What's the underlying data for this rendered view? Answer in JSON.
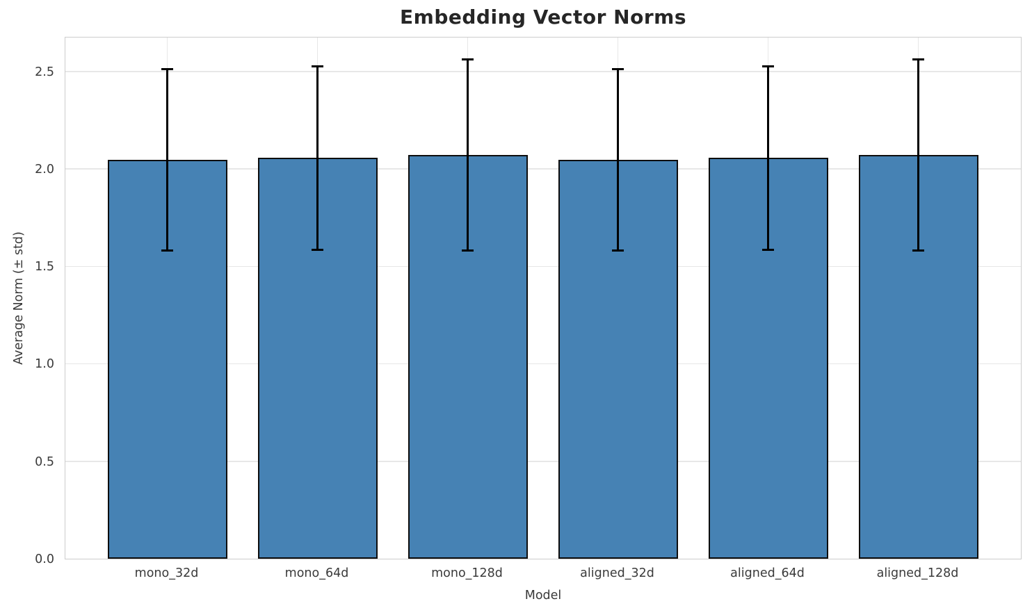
{
  "title": "Embedding Vector Norms",
  "chart_data": {
    "type": "bar",
    "title": "Embedding Vector Norms",
    "xlabel": "Model",
    "ylabel": "Average Norm (± std)",
    "categories": [
      "mono_32d",
      "mono_64d",
      "mono_128d",
      "aligned_32d",
      "aligned_64d",
      "aligned_128d"
    ],
    "values": [
      2.045,
      2.055,
      2.07,
      2.045,
      2.055,
      2.07
    ],
    "errors_std": [
      0.465,
      0.47,
      0.49,
      0.465,
      0.47,
      0.49
    ],
    "yticks": [
      0.0,
      0.5,
      1.0,
      1.5,
      2.0,
      2.5
    ],
    "ytick_labels": [
      "0.0",
      "0.5",
      "1.0",
      "1.5",
      "2.0",
      "2.5"
    ],
    "ylim": [
      0,
      2.68
    ],
    "grid": true,
    "legend": false,
    "error_bars": "symmetric ± std with caps",
    "colors": {
      "bar_fill": "#4682B4",
      "bar_edge": "#0d0d0d",
      "error": "#000000",
      "grid": "#e7e7e7",
      "spine": "#cccccc",
      "title_text": "#262626",
      "tick_text": "#3a3a3a"
    }
  }
}
